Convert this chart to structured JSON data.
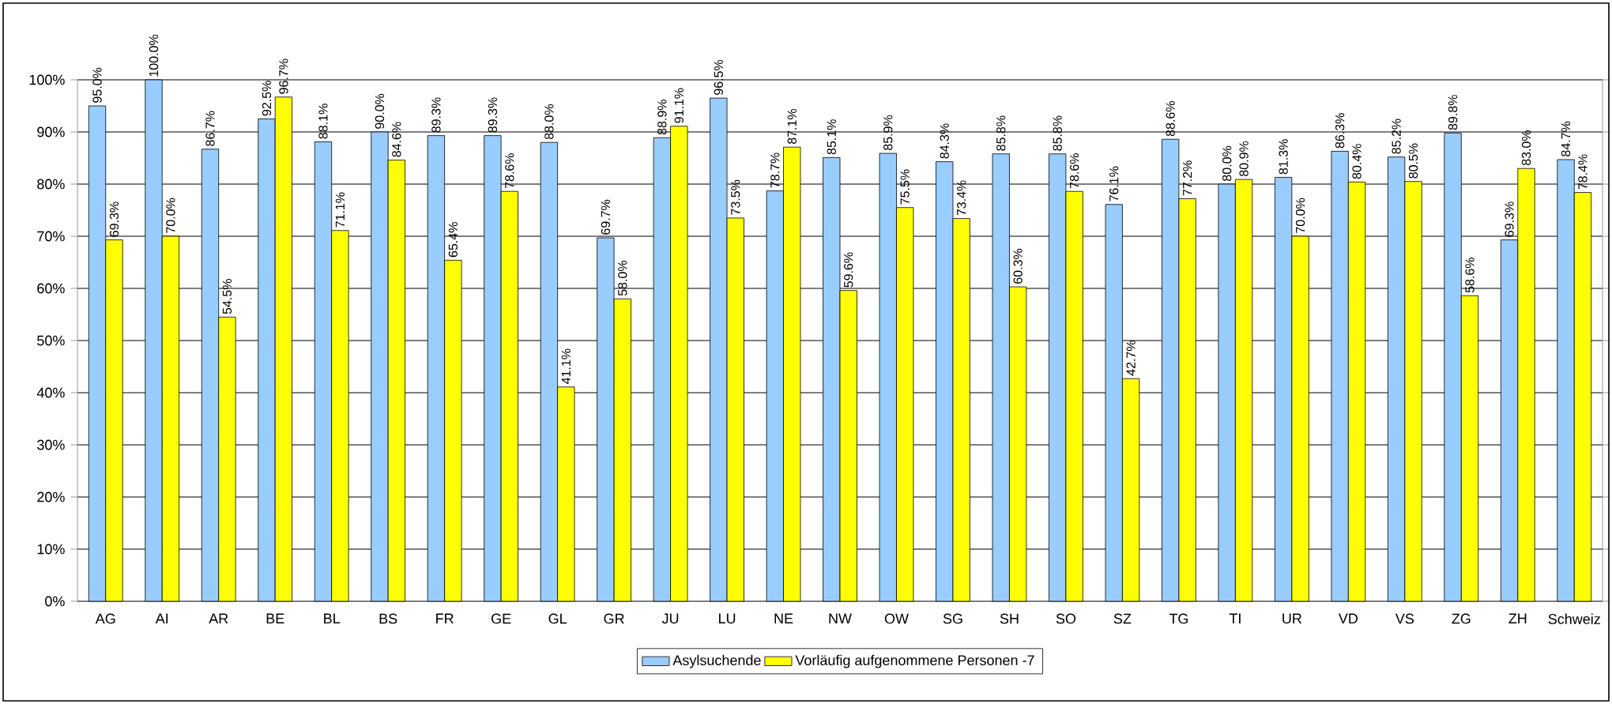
{
  "chart_data": {
    "type": "bar",
    "categories": [
      "AG",
      "AI",
      "AR",
      "BE",
      "BL",
      "BS",
      "FR",
      "GE",
      "GL",
      "GR",
      "JU",
      "LU",
      "NE",
      "NW",
      "OW",
      "SG",
      "SH",
      "SO",
      "SZ",
      "TG",
      "TI",
      "UR",
      "VD",
      "VS",
      "ZG",
      "ZH",
      "Schweiz"
    ],
    "series": [
      {
        "name": "Asylsuchende",
        "color": "#99ccff",
        "values": [
          95.0,
          100.0,
          86.7,
          92.5,
          88.1,
          90.0,
          89.3,
          89.3,
          88.0,
          69.7,
          88.9,
          96.5,
          78.7,
          85.1,
          85.9,
          84.3,
          85.8,
          85.8,
          76.1,
          88.6,
          80.0,
          81.3,
          86.3,
          85.2,
          89.8,
          69.3,
          84.7
        ],
        "value_labels": [
          "95.0%",
          "100.0%",
          "86.7%",
          "92.5%",
          "88.1%",
          "90.0%",
          "89.3%",
          "89.3%",
          "88.0%",
          "69.7%",
          "88.9%",
          "96.5%",
          "78.7%",
          "85.1%",
          "85.9%",
          "84.3%",
          "85.8%",
          "85.8%",
          "76.1%",
          "88.6%",
          "80.0%",
          "81.3%",
          "86.3%",
          "85.2%",
          "89.8%",
          "69.3%",
          "84.7%"
        ]
      },
      {
        "name": "Vorläufig aufgenommene Personen -7",
        "color": "#ffff00",
        "values": [
          69.3,
          70.0,
          54.5,
          96.7,
          71.1,
          84.6,
          65.4,
          78.6,
          41.1,
          58.0,
          91.1,
          73.5,
          87.1,
          59.6,
          75.5,
          73.4,
          60.3,
          78.6,
          42.7,
          77.2,
          80.9,
          70.0,
          80.4,
          80.5,
          58.6,
          83.0,
          78.4
        ],
        "value_labels": [
          "69.3%",
          "70.0%",
          "54.5%",
          "96.7%",
          "71.1%",
          "84.6%",
          "65.4%",
          "78.6%",
          "41.1%",
          "58.0%",
          "91.1%",
          "73.5%",
          "87.1%",
          "59.6%",
          "75.5%",
          "73.4%",
          "60.3%",
          "78.6%",
          "42.7%",
          "77.2%",
          "80.9%",
          "70.0%",
          "80.4%",
          "80.5%",
          "58.6%",
          "83.0%",
          "78.4%"
        ]
      }
    ],
    "ylim": [
      0,
      100
    ],
    "yticks": [
      {
        "value": 0,
        "label": "0%"
      },
      {
        "value": 10,
        "label": "10%"
      },
      {
        "value": 20,
        "label": "20%"
      },
      {
        "value": 30,
        "label": "30%"
      },
      {
        "value": 40,
        "label": "40%"
      },
      {
        "value": 50,
        "label": "50%"
      },
      {
        "value": 60,
        "label": "60%"
      },
      {
        "value": 70,
        "label": "70%"
      },
      {
        "value": 80,
        "label": "80%"
      },
      {
        "value": 90,
        "label": "90%"
      },
      {
        "value": 100,
        "label": "100%"
      }
    ],
    "grid": "y",
    "legend": "bottom"
  }
}
